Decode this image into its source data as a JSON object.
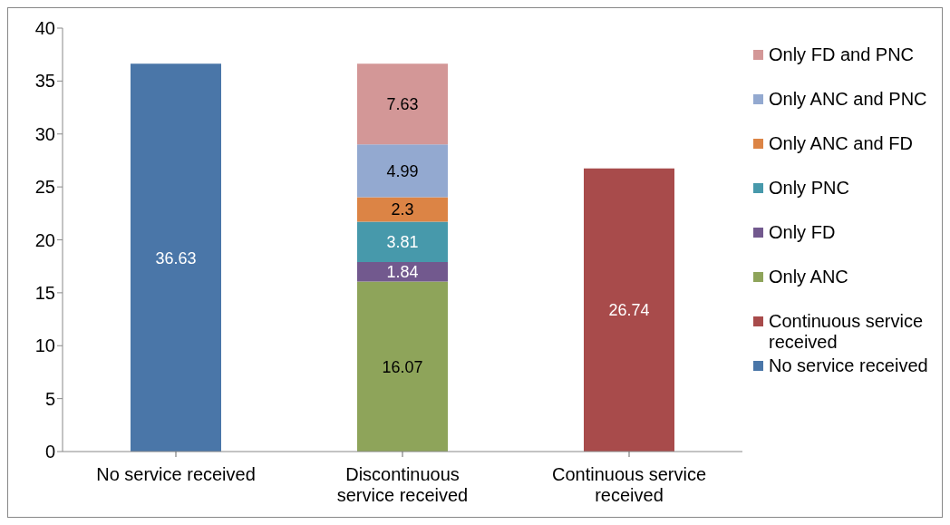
{
  "chart_data": {
    "type": "bar",
    "stacked": true,
    "categories": [
      "No service received",
      "Discontinuous service received",
      "Continuous service received"
    ],
    "series": [
      {
        "name": "No service received",
        "color": "#4a76a8",
        "values": [
          36.63,
          null,
          null
        ]
      },
      {
        "name": "Continuous service received",
        "color": "#a84b4b",
        "values": [
          null,
          null,
          26.74
        ]
      },
      {
        "name": "Only ANC",
        "color": "#8ea45a",
        "values": [
          null,
          16.07,
          null
        ]
      },
      {
        "name": "Only FD",
        "color": "#72598e",
        "values": [
          null,
          1.84,
          null
        ]
      },
      {
        "name": "Only PNC",
        "color": "#4799ab",
        "values": [
          null,
          3.81,
          null
        ]
      },
      {
        "name": "Only ANC and FD",
        "color": "#dc8445",
        "values": [
          null,
          2.3,
          null
        ]
      },
      {
        "name": "Only ANC and PNC",
        "color": "#93a9d0",
        "values": [
          null,
          4.99,
          null
        ]
      },
      {
        "name": "Only FD and PNC",
        "color": "#d39797",
        "values": [
          null,
          7.63,
          null
        ]
      }
    ],
    "ylim": [
      0,
      40
    ],
    "yticks": [
      0,
      5,
      10,
      15,
      20,
      25,
      30,
      35,
      40
    ],
    "grid": false,
    "legend": "right",
    "data_labels": true
  }
}
